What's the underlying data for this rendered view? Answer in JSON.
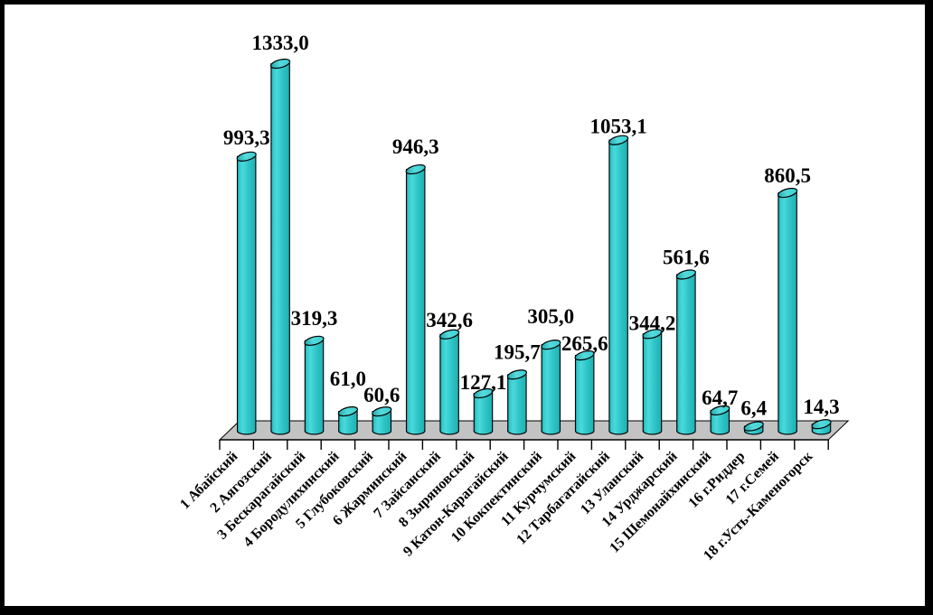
{
  "chart_data": {
    "type": "bar",
    "subtype": "3d-cylinder-columns",
    "title": "",
    "xlabel": "",
    "ylabel": "",
    "grid": false,
    "legend": false,
    "ylim": [
      0,
      1400
    ],
    "categories": [
      "1 Абайский",
      "2 Аягозский",
      "3 Бескарагайский",
      "4 Бородулихинский",
      "5 Глубоковский",
      "6 Жарминский",
      "7 Зайсанский",
      "8 Зыряновский",
      "9 Катон-Карагайский",
      "10 Кокпектинский",
      "11 Курчумский",
      "12 Тарбагатайский",
      "13 Уланский",
      "14 Урджарский",
      "15 Шемонайхинский",
      "16 г.Риддер",
      "17 г.Семей",
      "18 г.Усть-Каменогорск"
    ],
    "values": [
      993.3,
      1333.0,
      319.3,
      61.0,
      60.6,
      946.3,
      342.6,
      127.1,
      195.7,
      305.0,
      265.6,
      1053.1,
      344.2,
      561.6,
      64.7,
      6.4,
      860.5,
      14.3
    ],
    "value_labels": [
      "993,3",
      "1333,0",
      "319,3",
      "61,0",
      "60,6",
      "946,3",
      "342,6",
      "127,1",
      "195,7",
      "305,0",
      "265,6",
      "1053,1",
      "344,2",
      "561,6",
      "64,7",
      "6,4",
      "860,5",
      "14,3"
    ],
    "colors": {
      "bar": "#2FC6C8",
      "bar_dark_edge": "#0D9396",
      "bar_highlight": "#4BD9DB",
      "bar_top": "#45D4D6",
      "floor": "#C3C3C3",
      "outline": "#000000",
      "text": "#000000",
      "background": "#FFFFFF",
      "frame": "#000000"
    }
  }
}
